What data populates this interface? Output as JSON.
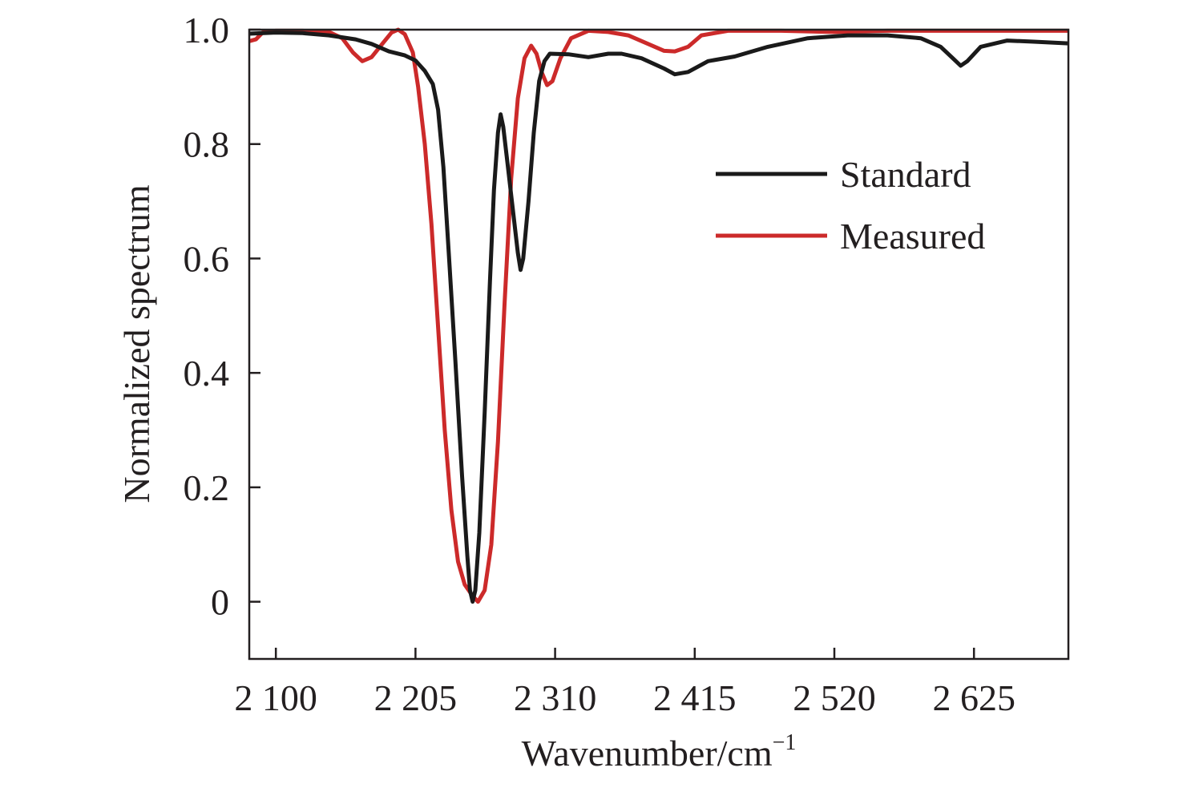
{
  "chart_data": {
    "type": "line",
    "xlabel": "Wavenumber/cm",
    "xlabel_superscript": "−1",
    "ylabel": "Normalized spectrum",
    "xlim": [
      2080,
      2696
    ],
    "ylim": [
      -0.1,
      1.0
    ],
    "x_ticks": [
      {
        "value": 2100,
        "label": "2 100"
      },
      {
        "value": 2205,
        "label": "2 205"
      },
      {
        "value": 2310,
        "label": "2 310"
      },
      {
        "value": 2415,
        "label": "2 415"
      },
      {
        "value": 2520,
        "label": "2 520"
      },
      {
        "value": 2625,
        "label": "2 625"
      }
    ],
    "y_ticks": [
      {
        "value": 0,
        "label": "0"
      },
      {
        "value": 0.2,
        "label": "0.2"
      },
      {
        "value": 0.4,
        "label": "0.4"
      },
      {
        "value": 0.6,
        "label": "0.6"
      },
      {
        "value": 0.8,
        "label": "0.8"
      },
      {
        "value": 1.0,
        "label": "1.0"
      }
    ],
    "grid": false,
    "legend_position": "top-right",
    "series": [
      {
        "name": "Standard",
        "color": "#1a1a1a",
        "points": [
          [
            2080,
            0.993
          ],
          [
            2100,
            0.995
          ],
          [
            2120,
            0.994
          ],
          [
            2140,
            0.99
          ],
          [
            2160,
            0.983
          ],
          [
            2172,
            0.975
          ],
          [
            2185,
            0.962
          ],
          [
            2197,
            0.955
          ],
          [
            2205,
            0.946
          ],
          [
            2212,
            0.928
          ],
          [
            2218,
            0.905
          ],
          [
            2222,
            0.86
          ],
          [
            2226,
            0.76
          ],
          [
            2230,
            0.61
          ],
          [
            2235,
            0.42
          ],
          [
            2240,
            0.22
          ],
          [
            2244,
            0.08
          ],
          [
            2246,
            0.02
          ],
          [
            2248,
            0.0
          ],
          [
            2250,
            0.02
          ],
          [
            2253,
            0.12
          ],
          [
            2257,
            0.33
          ],
          [
            2261,
            0.56
          ],
          [
            2264,
            0.72
          ],
          [
            2267,
            0.82
          ],
          [
            2269,
            0.852
          ],
          [
            2271,
            0.83
          ],
          [
            2274,
            0.77
          ],
          [
            2278,
            0.69
          ],
          [
            2282,
            0.61
          ],
          [
            2284,
            0.58
          ],
          [
            2286,
            0.6
          ],
          [
            2290,
            0.7
          ],
          [
            2294,
            0.82
          ],
          [
            2298,
            0.91
          ],
          [
            2302,
            0.945
          ],
          [
            2306,
            0.958
          ],
          [
            2320,
            0.957
          ],
          [
            2335,
            0.952
          ],
          [
            2350,
            0.958
          ],
          [
            2360,
            0.958
          ],
          [
            2375,
            0.95
          ],
          [
            2392,
            0.932
          ],
          [
            2400,
            0.922
          ],
          [
            2410,
            0.926
          ],
          [
            2425,
            0.945
          ],
          [
            2445,
            0.953
          ],
          [
            2470,
            0.97
          ],
          [
            2500,
            0.985
          ],
          [
            2530,
            0.99
          ],
          [
            2560,
            0.99
          ],
          [
            2585,
            0.985
          ],
          [
            2600,
            0.97
          ],
          [
            2610,
            0.948
          ],
          [
            2615,
            0.937
          ],
          [
            2620,
            0.945
          ],
          [
            2630,
            0.97
          ],
          [
            2650,
            0.981
          ],
          [
            2670,
            0.979
          ],
          [
            2696,
            0.976
          ]
        ]
      },
      {
        "name": "Measured",
        "color": "#cc2a2a",
        "points": [
          [
            2080,
            0.98
          ],
          [
            2085,
            0.983
          ],
          [
            2090,
            0.995
          ],
          [
            2100,
            0.998
          ],
          [
            2120,
            0.998
          ],
          [
            2140,
            0.996
          ],
          [
            2150,
            0.985
          ],
          [
            2158,
            0.96
          ],
          [
            2165,
            0.945
          ],
          [
            2172,
            0.952
          ],
          [
            2180,
            0.975
          ],
          [
            2187,
            0.995
          ],
          [
            2192,
            1.0
          ],
          [
            2197,
            0.992
          ],
          [
            2203,
            0.96
          ],
          [
            2207,
            0.9
          ],
          [
            2212,
            0.8
          ],
          [
            2217,
            0.66
          ],
          [
            2222,
            0.48
          ],
          [
            2227,
            0.3
          ],
          [
            2232,
            0.16
          ],
          [
            2237,
            0.07
          ],
          [
            2242,
            0.03
          ],
          [
            2248,
            0.01
          ],
          [
            2252,
            0.0
          ],
          [
            2257,
            0.02
          ],
          [
            2262,
            0.1
          ],
          [
            2267,
            0.28
          ],
          [
            2272,
            0.52
          ],
          [
            2277,
            0.74
          ],
          [
            2282,
            0.88
          ],
          [
            2287,
            0.95
          ],
          [
            2292,
            0.972
          ],
          [
            2296,
            0.958
          ],
          [
            2300,
            0.925
          ],
          [
            2304,
            0.903
          ],
          [
            2308,
            0.91
          ],
          [
            2314,
            0.95
          ],
          [
            2322,
            0.985
          ],
          [
            2335,
            0.998
          ],
          [
            2350,
            0.996
          ],
          [
            2365,
            0.99
          ],
          [
            2380,
            0.975
          ],
          [
            2392,
            0.963
          ],
          [
            2400,
            0.962
          ],
          [
            2410,
            0.97
          ],
          [
            2420,
            0.99
          ],
          [
            2440,
            0.998
          ],
          [
            2480,
            0.998
          ],
          [
            2520,
            0.996
          ],
          [
            2560,
            0.998
          ],
          [
            2600,
            0.998
          ],
          [
            2650,
            0.998
          ],
          [
            2696,
            0.998
          ]
        ]
      }
    ]
  }
}
